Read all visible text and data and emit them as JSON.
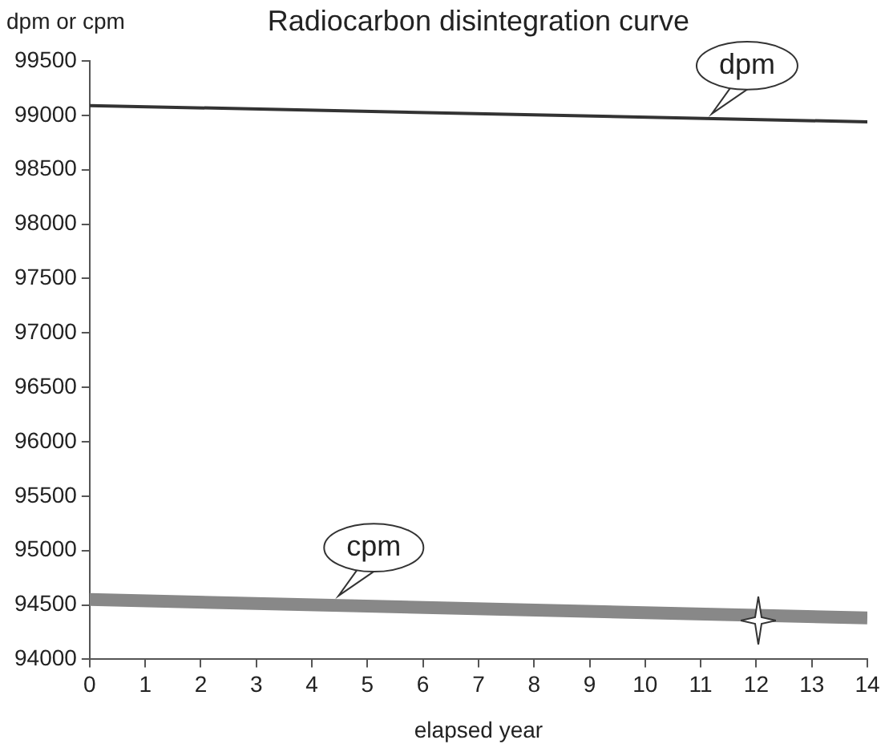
{
  "chart_data": {
    "type": "line",
    "title": "Radiocarbon disintegration curve",
    "xlabel": "elapsed year",
    "ylabel": "dpm or cpm",
    "x": [
      0,
      14
    ],
    "series": [
      {
        "name": "dpm",
        "color": "#333333",
        "values": [
          99090,
          98940
        ]
      },
      {
        "name": "cpm",
        "color": "#888888",
        "values": [
          94550,
          94380
        ]
      }
    ],
    "xlim": [
      0,
      14
    ],
    "xticks": [
      0,
      1,
      2,
      3,
      4,
      5,
      6,
      7,
      8,
      9,
      10,
      11,
      12,
      13,
      14
    ],
    "ylim": [
      94000,
      99500
    ],
    "yticks": [
      94000,
      94500,
      95000,
      95500,
      96000,
      96500,
      97000,
      97500,
      98000,
      98500,
      99000,
      99500
    ],
    "grid": false,
    "legend": false,
    "marker": "none",
    "line_style": "solid"
  }
}
